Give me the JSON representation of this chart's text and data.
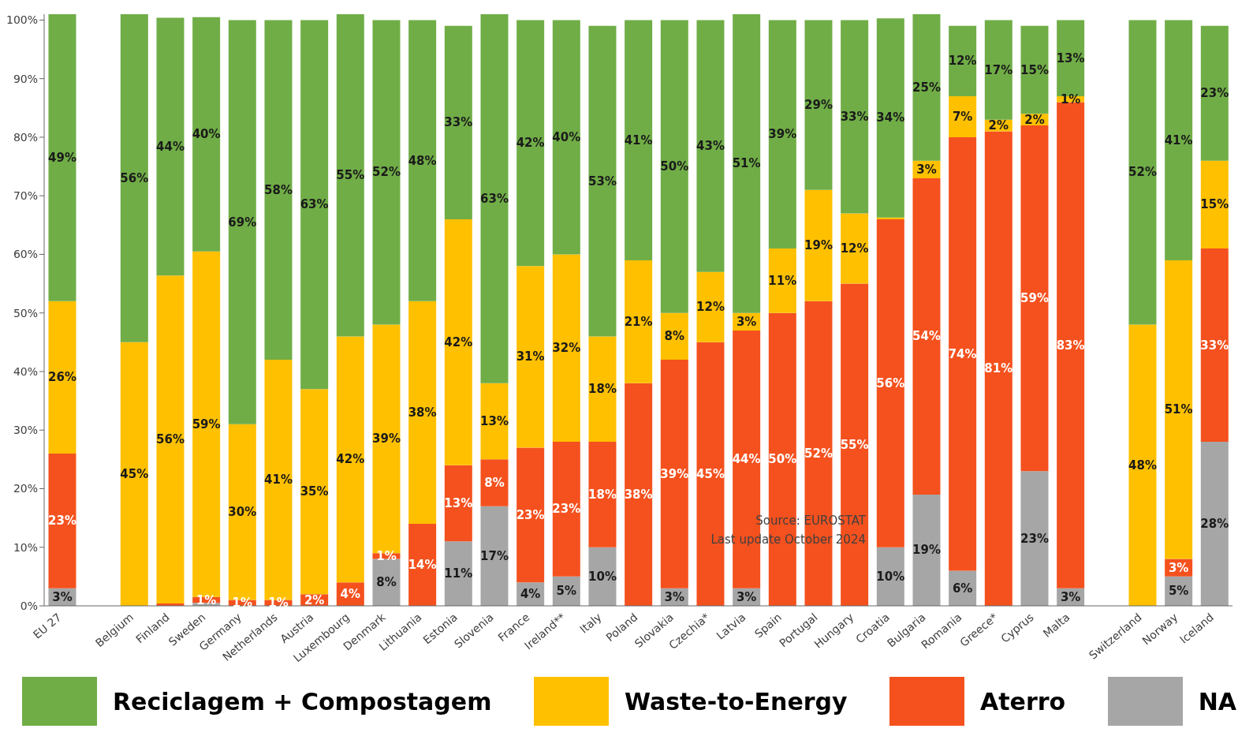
{
  "chart_data": {
    "type": "bar",
    "stacked": true,
    "categories": [
      "EU 27",
      null,
      "Belgium",
      "Finland",
      "Sweden",
      "Germany",
      "Netherlands",
      "Austria",
      "Luxembourg",
      "Denmark",
      "Lithuania",
      "Estonia",
      "Slovenia",
      "France",
      "Ireland**",
      "Italy",
      "Poland",
      "Slovakia",
      "Czechia*",
      "Latvia",
      "Spain",
      "Portugal",
      "Hungary",
      "Croatia",
      "Bulgaria",
      "Romania",
      "Greece*",
      "Cyprus",
      "Malta",
      null,
      "Switzerland",
      "Norway",
      "Iceland"
    ],
    "series": [
      {
        "name": "NA",
        "color": "#a6a6a6",
        "values": [
          3,
          null,
          0,
          0,
          0.5,
          0,
          0,
          0,
          0,
          8,
          0,
          11,
          17,
          4,
          5,
          10,
          0,
          3,
          0,
          3,
          0,
          0,
          0,
          10,
          19,
          6,
          0,
          23,
          3,
          null,
          0,
          5,
          28
        ],
        "value_labels": [
          "3%",
          null,
          null,
          null,
          null,
          null,
          null,
          null,
          null,
          "8%",
          null,
          "11%",
          "17%",
          "4%",
          "5%",
          "10%",
          null,
          "3%",
          null,
          "3%",
          null,
          null,
          null,
          "10%",
          "19%",
          "6%",
          null,
          "23%",
          "3%",
          null,
          null,
          "5%",
          "28%"
        ]
      },
      {
        "name": "Aterro",
        "color": "#f4511e",
        "values": [
          23,
          null,
          0,
          0.4,
          1,
          1,
          1,
          2,
          4,
          1,
          14,
          13,
          8,
          23,
          23,
          18,
          38,
          39,
          45,
          44,
          50,
          52,
          55,
          56,
          54,
          74,
          81,
          59,
          83,
          null,
          0,
          3,
          33
        ],
        "value_labels": [
          "23%",
          null,
          null,
          null,
          "1%",
          "1%",
          "1%",
          "2%",
          "4%",
          "1%",
          "14%",
          "13%",
          "8%",
          "23%",
          "23%",
          "18%",
          "38%",
          "39%",
          "45%",
          "44%",
          "50%",
          "52%",
          "55%",
          "56%",
          "54%",
          "74%",
          "81%",
          "59%",
          "83%",
          null,
          null,
          "3%",
          "33%"
        ]
      },
      {
        "name": "Waste-to-Energy",
        "color": "#ffc000",
        "values": [
          26,
          null,
          45,
          56,
          59,
          30,
          41,
          35,
          42,
          39,
          38,
          42,
          13,
          31,
          32,
          18,
          21,
          8,
          12,
          3,
          11,
          19,
          12,
          0.3,
          3,
          7,
          2,
          2,
          1,
          null,
          48,
          51,
          15
        ],
        "value_labels": [
          "26%",
          null,
          "45%",
          "56%",
          "59%",
          "30%",
          "41%",
          "35%",
          "42%",
          "39%",
          "38%",
          "42%",
          "13%",
          "31%",
          "32%",
          "18%",
          "21%",
          "8%",
          "12%",
          "3%",
          "11%",
          "19%",
          "12%",
          null,
          "3%",
          "7%",
          "2%",
          "2%",
          "1%",
          null,
          "48%",
          "51%",
          "15%"
        ]
      },
      {
        "name": "Reciclagem + Compostagem",
        "color": "#70ad47",
        "values": [
          49,
          null,
          56,
          44,
          40,
          69,
          58,
          63,
          55,
          52,
          48,
          33,
          63,
          42,
          40,
          53,
          41,
          50,
          43,
          51,
          39,
          29,
          33,
          34,
          25,
          12,
          17,
          15,
          13,
          null,
          52,
          41,
          23
        ],
        "value_labels": [
          "49%",
          null,
          "56%",
          "44%",
          "40%",
          "69%",
          "58%",
          "63%",
          "55%",
          "52%",
          "48%",
          "33%",
          "63%",
          "42%",
          "40%",
          "53%",
          "41%",
          "50%",
          "43%",
          "51%",
          "39%",
          "29%",
          "33%",
          "34%",
          "25%",
          "12%",
          "17%",
          "15%",
          "13%",
          null,
          "52%",
          "41%",
          "23%"
        ]
      }
    ],
    "ylim": [
      0,
      101
    ],
    "yticks": [
      {
        "value": 0,
        "label": "0%"
      },
      {
        "value": 10,
        "label": "10%"
      },
      {
        "value": 20,
        "label": "20%"
      },
      {
        "value": 30,
        "label": "30%"
      },
      {
        "value": 40,
        "label": "40%"
      },
      {
        "value": 50,
        "label": "50%"
      },
      {
        "value": 60,
        "label": "60%"
      },
      {
        "value": 70,
        "label": "70%"
      },
      {
        "value": 80,
        "label": "80%"
      },
      {
        "value": 90,
        "label": "90%"
      },
      {
        "value": 100,
        "label": "100%"
      }
    ],
    "legend": "bottom",
    "annotations": [
      "Source: EUROSTAT",
      "Last update October 2024"
    ]
  }
}
